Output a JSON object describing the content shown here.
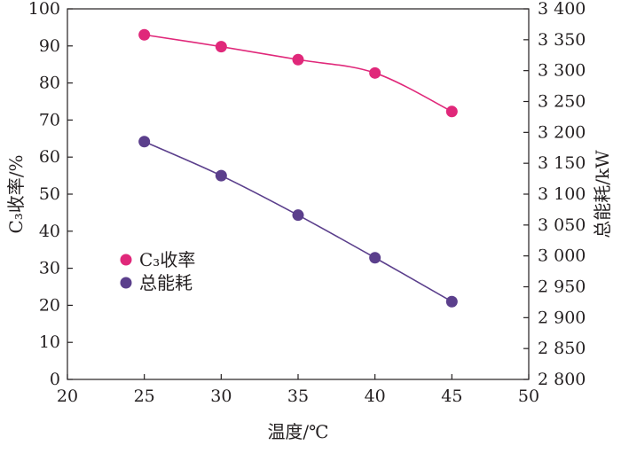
{
  "chart_data": {
    "type": "line",
    "x": [
      25,
      30,
      35,
      40,
      45
    ],
    "xlabel": "温度/℃",
    "xlim": [
      20,
      50
    ],
    "xticks": [
      20,
      25,
      30,
      35,
      40,
      45,
      50
    ],
    "ylabel_left": "C₃收率/%",
    "ylim_left": [
      0,
      100
    ],
    "yticks_left": [
      0,
      10,
      20,
      30,
      40,
      50,
      60,
      70,
      80,
      90,
      100
    ],
    "ylabel_right": "总能耗/kW",
    "ylim_right": [
      2800,
      3400
    ],
    "yticks_right": [
      "2 800",
      "2 850",
      "2 900",
      "2 950",
      "3 000",
      "3 050",
      "3 100",
      "3 150",
      "3 200",
      "3 250",
      "3 300",
      "3 350",
      "3 400"
    ],
    "series": [
      {
        "name": "C₃收率",
        "axis": "left",
        "values": [
          93,
          89.8,
          86.3,
          82.7,
          72.3
        ],
        "color": "#e0287a"
      },
      {
        "name": "总能耗",
        "axis": "right",
        "values": [
          3185,
          3130,
          3066,
          2997,
          2926
        ],
        "color": "#5b3f8c"
      }
    ],
    "legend_position": "middle-left",
    "grid": false
  }
}
